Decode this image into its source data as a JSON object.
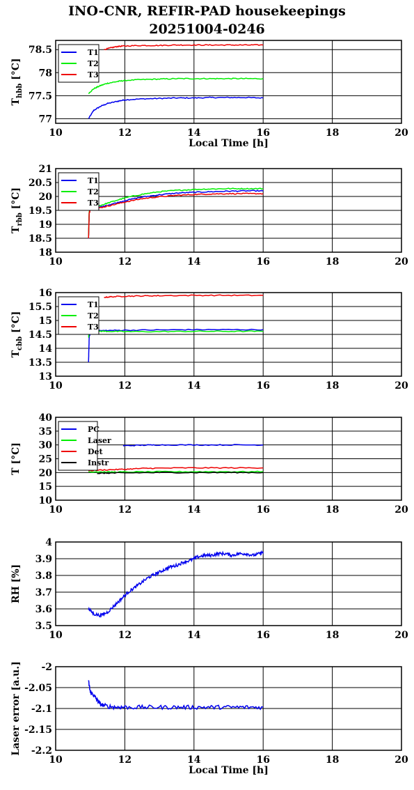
{
  "figure": {
    "title_line1": "INO-CNR, REFIR-PAD housekeepings",
    "title_line2": "20251004-0246"
  },
  "colors": {
    "blue": "#0000ee",
    "green": "#00ee00",
    "red": "#ee0000",
    "black": "#000000"
  },
  "chart_data": [
    {
      "id": "hbb",
      "type": "line",
      "ylabel_main": "T",
      "ylabel_sub": "hbb",
      "ylabel_unit": "[°C]",
      "xlabel": "Local Time [h]",
      "xlim": [
        10,
        20
      ],
      "ylim": [
        76.9,
        78.7
      ],
      "xticks": [
        "10",
        "12",
        "14",
        "16",
        "18",
        "20"
      ],
      "yticks": [
        77,
        77.5,
        78,
        78.5
      ],
      "ytick_labels": [
        "77",
        "77.5",
        "78",
        "78.5"
      ],
      "grid": true,
      "legend": "top-left",
      "series": [
        {
          "name": "T1",
          "color": "blue",
          "x": [
            10.95,
            11.1,
            11.3,
            11.5,
            11.8,
            12.0,
            12.5,
            13.0,
            13.5,
            14.0,
            14.5,
            15.0,
            15.5,
            16.0
          ],
          "y": [
            77.0,
            77.18,
            77.27,
            77.33,
            77.38,
            77.41,
            77.43,
            77.44,
            77.45,
            77.45,
            77.46,
            77.46,
            77.46,
            77.45
          ]
        },
        {
          "name": "T2",
          "color": "green",
          "x": [
            10.95,
            11.1,
            11.3,
            11.5,
            11.8,
            12.0,
            12.5,
            13.0,
            13.5,
            14.0,
            14.5,
            15.0,
            15.5,
            16.0
          ],
          "y": [
            77.55,
            77.65,
            77.72,
            77.77,
            77.81,
            77.83,
            77.85,
            77.86,
            77.87,
            77.87,
            77.87,
            77.87,
            77.87,
            77.87
          ]
        },
        {
          "name": "T3",
          "color": "red",
          "x": [
            11.4,
            11.6,
            11.8,
            12.0,
            12.5,
            13.0,
            13.5,
            14.0,
            14.5,
            15.0,
            15.5,
            16.0
          ],
          "y": [
            78.5,
            78.54,
            78.57,
            78.58,
            78.59,
            78.59,
            78.6,
            78.6,
            78.6,
            78.6,
            78.6,
            78.6
          ]
        }
      ]
    },
    {
      "id": "rbb",
      "type": "line",
      "ylabel_main": "T",
      "ylabel_sub": "rbb",
      "ylabel_unit": "[°C]",
      "xlabel": "",
      "xlim": [
        10,
        20
      ],
      "ylim": [
        18,
        21
      ],
      "xticks": [
        "10",
        "12",
        "14",
        "16",
        "18",
        "20"
      ],
      "yticks": [
        18,
        18.5,
        19,
        19.5,
        20,
        20.5,
        21
      ],
      "ytick_labels": [
        "18",
        "18.5",
        "19",
        "19.5",
        "20",
        "20.5",
        "21"
      ],
      "grid": true,
      "legend": "top-left",
      "series": [
        {
          "name": "T1",
          "color": "blue",
          "x": [
            10.95,
            10.97,
            11.0,
            11.3,
            11.6,
            12.0,
            12.5,
            13.0,
            13.5,
            14.0,
            14.5,
            15.0,
            15.5,
            16.0
          ],
          "y": [
            18.5,
            19.4,
            19.55,
            19.62,
            19.72,
            19.85,
            19.98,
            20.06,
            20.12,
            20.15,
            20.17,
            20.19,
            20.2,
            20.2
          ]
        },
        {
          "name": "T2",
          "color": "green",
          "x": [
            10.95,
            10.97,
            11.0,
            11.3,
            11.6,
            12.0,
            12.5,
            13.0,
            13.5,
            14.0,
            14.5,
            15.0,
            15.5,
            16.0
          ],
          "y": [
            18.5,
            19.45,
            19.6,
            19.68,
            19.8,
            19.95,
            20.08,
            20.17,
            20.22,
            20.25,
            20.27,
            20.28,
            20.28,
            20.28
          ]
        },
        {
          "name": "T3",
          "color": "red",
          "x": [
            10.95,
            10.97,
            11.0,
            11.3,
            11.6,
            12.0,
            12.5,
            13.0,
            13.5,
            14.0,
            14.5,
            15.0,
            15.5,
            16.0
          ],
          "y": [
            18.5,
            19.4,
            19.55,
            19.6,
            19.68,
            19.8,
            19.92,
            19.99,
            20.04,
            20.07,
            20.09,
            20.1,
            20.1,
            20.1
          ]
        }
      ]
    },
    {
      "id": "cbb",
      "type": "line",
      "ylabel_main": "T",
      "ylabel_sub": "cbb",
      "ylabel_unit": "[°C]",
      "xlabel": "",
      "xlim": [
        10,
        20
      ],
      "ylim": [
        13,
        16
      ],
      "xticks": [
        "10",
        "12",
        "14",
        "16",
        "18",
        "20"
      ],
      "yticks": [
        13,
        13.5,
        14,
        14.5,
        15,
        15.5,
        16
      ],
      "ytick_labels": [
        "13",
        "13.5",
        "14",
        "14.5",
        "15",
        "15.5",
        "16"
      ],
      "grid": true,
      "legend": "top-left",
      "series": [
        {
          "name": "T1",
          "color": "blue",
          "x": [
            10.95,
            10.97,
            11.0,
            11.2,
            11.5,
            12.0,
            13.0,
            14.0,
            15.0,
            16.0
          ],
          "y": [
            13.5,
            14.4,
            14.6,
            14.63,
            14.64,
            14.65,
            14.66,
            14.67,
            14.67,
            14.67
          ]
        },
        {
          "name": "T2",
          "color": "green",
          "x": [
            10.95,
            10.97,
            11.0,
            11.2,
            11.5,
            12.0,
            13.0,
            14.0,
            15.0,
            16.0
          ],
          "y": [
            14.4,
            14.6,
            14.65,
            14.62,
            14.61,
            14.6,
            14.6,
            14.61,
            14.61,
            14.61
          ]
        },
        {
          "name": "T3",
          "color": "red",
          "x": [
            11.4,
            11.6,
            12.0,
            12.5,
            13.0,
            14.0,
            15.0,
            16.0
          ],
          "y": [
            15.83,
            15.85,
            15.87,
            15.88,
            15.89,
            15.9,
            15.9,
            15.9
          ]
        }
      ]
    },
    {
      "id": "temps",
      "type": "line",
      "ylabel_main": "T [°C]",
      "ylabel_sub": "",
      "ylabel_unit": "",
      "xlabel": "",
      "xlim": [
        10,
        20
      ],
      "ylim": [
        10,
        40
      ],
      "xticks": [
        "10",
        "12",
        "14",
        "16",
        "18",
        "20"
      ],
      "yticks": [
        10,
        15,
        20,
        25,
        30,
        35,
        40
      ],
      "ytick_labels": [
        "10",
        "15",
        "20",
        "25",
        "30",
        "35",
        "40"
      ],
      "grid": true,
      "legend": "top-left",
      "series": [
        {
          "name": "PC",
          "color": "blue",
          "x": [
            11.95,
            12.5,
            13.0,
            14.0,
            15.0,
            16.0
          ],
          "y": [
            29.7,
            29.9,
            30.0,
            30.0,
            30.0,
            30.0
          ]
        },
        {
          "name": "Laser",
          "color": "green",
          "x": [
            10.95,
            11.5,
            12.0,
            13.0,
            14.0,
            15.0,
            16.0
          ],
          "y": [
            20.3,
            20.2,
            20.2,
            20.3,
            20.3,
            20.3,
            20.3
          ]
        },
        {
          "name": "Det",
          "color": "red",
          "x": [
            10.95,
            11.5,
            12.0,
            12.5,
            13.0,
            14.0,
            15.0,
            16.0
          ],
          "y": [
            20.7,
            21.0,
            21.2,
            21.5,
            21.6,
            21.7,
            21.7,
            21.7
          ]
        },
        {
          "name": "Instr",
          "color": "black",
          "x": [
            11.2,
            11.5,
            12.0,
            13.0,
            14.0,
            15.0,
            16.0
          ],
          "y": [
            19.7,
            19.8,
            19.9,
            20.0,
            20.0,
            20.0,
            20.0
          ]
        }
      ]
    },
    {
      "id": "rh",
      "type": "line",
      "ylabel_main": "RH [%]",
      "ylabel_sub": "",
      "ylabel_unit": "",
      "xlabel": "",
      "xlim": [
        10,
        20
      ],
      "ylim": [
        3.5,
        4
      ],
      "xticks": [
        "10",
        "12",
        "14",
        "16",
        "18",
        "20"
      ],
      "yticks": [
        3.5,
        3.6,
        3.7,
        3.8,
        3.9,
        4
      ],
      "ytick_labels": [
        "3.5",
        "3.6",
        "3.7",
        "3.8",
        "3.9",
        "4"
      ],
      "grid": true,
      "legend": "none",
      "series": [
        {
          "name": "",
          "color": "blue",
          "x": [
            10.95,
            11.1,
            11.3,
            11.5,
            11.7,
            11.9,
            12.1,
            12.3,
            12.5,
            12.7,
            12.9,
            13.1,
            13.3,
            13.5,
            13.7,
            13.9,
            14.1,
            14.3,
            14.5,
            14.7,
            14.9,
            15.1,
            15.3,
            15.5,
            15.7,
            15.9,
            16.0
          ],
          "y": [
            3.6,
            3.57,
            3.56,
            3.58,
            3.62,
            3.66,
            3.7,
            3.73,
            3.76,
            3.79,
            3.81,
            3.83,
            3.85,
            3.86,
            3.88,
            3.89,
            3.91,
            3.92,
            3.92,
            3.93,
            3.93,
            3.92,
            3.93,
            3.93,
            3.92,
            3.93,
            3.94
          ]
        }
      ]
    },
    {
      "id": "laser",
      "type": "line",
      "ylabel_main": "Laser error [a.u.]",
      "ylabel_sub": "",
      "ylabel_unit": "",
      "xlabel": "Local Time [h]",
      "xlim": [
        10,
        20
      ],
      "ylim": [
        -2.2,
        -2
      ],
      "xticks": [
        "10",
        "12",
        "14",
        "16",
        "18",
        "20"
      ],
      "yticks": [
        -2.2,
        -2.15,
        -2.1,
        -2.05,
        -2
      ],
      "ytick_labels": [
        "-2.2",
        "-2.15",
        "-2.1",
        "-2.05",
        "-2"
      ],
      "grid": true,
      "legend": "none",
      "series": [
        {
          "name": "",
          "color": "blue",
          "x": [
            10.95,
            11.0,
            11.1,
            11.2,
            11.3,
            11.5,
            11.8,
            12.0,
            12.5,
            13.0,
            13.5,
            14.0,
            14.5,
            15.0,
            15.5,
            16.0
          ],
          "y": [
            -2.035,
            -2.06,
            -2.068,
            -2.08,
            -2.09,
            -2.095,
            -2.097,
            -2.097,
            -2.097,
            -2.097,
            -2.097,
            -2.097,
            -2.097,
            -2.097,
            -2.097,
            -2.097
          ]
        }
      ]
    }
  ]
}
